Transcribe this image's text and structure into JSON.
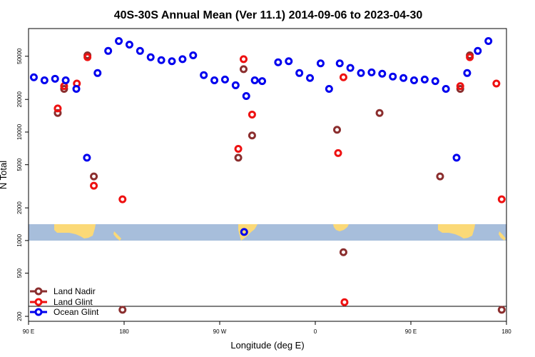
{
  "chart_data": {
    "type": "scatter",
    "title": "40S-30S Annual Mean (Ver 11.1)   2014-09-06 to 2023-04-30",
    "xlabel": "Longitude (deg E)",
    "ylabel": "N Total",
    "x_scale": "linear",
    "y_scale": "log",
    "xlim": [
      90,
      540
    ],
    "ylim": [
      180,
      90000
    ],
    "x_ticks": [
      {
        "value": 90,
        "label": "90 E"
      },
      {
        "value": 180,
        "label": "180"
      },
      {
        "value": 270,
        "label": "90 W"
      },
      {
        "value": 360,
        "label": "0"
      },
      {
        "value": 450,
        "label": "90 E"
      },
      {
        "value": 540,
        "label": "180"
      }
    ],
    "y_ticks": [
      {
        "value": 200,
        "label": "200"
      },
      {
        "value": 500,
        "label": "500"
      },
      {
        "value": 1000,
        "label": "1000"
      },
      {
        "value": 2000,
        "label": "2000"
      },
      {
        "value": 5000,
        "label": "5000"
      },
      {
        "value": 10000,
        "label": "10000"
      },
      {
        "value": 20000,
        "label": "20000"
      },
      {
        "value": 50000,
        "label": "50000"
      }
    ],
    "grid": false,
    "legend_position": "bottom-left",
    "map_strip": {
      "y_range": [
        1000,
        1400
      ],
      "ocean_color": "#a7bedb",
      "land_color": "#fbd977"
    },
    "series": [
      {
        "name": "Land Nadir",
        "color": "#8b2e2e",
        "points": [
          [
            117.5,
            15000
          ],
          [
            123.5,
            25000
          ],
          [
            145.5,
            51000
          ],
          [
            151.5,
            3900
          ],
          [
            178.5,
            230
          ],
          [
            287.5,
            5800
          ],
          [
            292.5,
            38000
          ],
          [
            300.5,
            9300
          ],
          [
            380.5,
            10500
          ],
          [
            420.5,
            15000
          ],
          [
            386.5,
            780
          ],
          [
            477.5,
            3900
          ],
          [
            496.5,
            25000
          ],
          [
            505.5,
            51000
          ],
          [
            535.5,
            230
          ]
        ]
      },
      {
        "name": "Land Glint",
        "color": "#ee1111",
        "points": [
          [
            117.5,
            16500
          ],
          [
            123.5,
            26500
          ],
          [
            135.5,
            28000
          ],
          [
            145.5,
            49000
          ],
          [
            151.5,
            3200
          ],
          [
            178.5,
            2400
          ],
          [
            287.5,
            7000
          ],
          [
            292.5,
            47000
          ],
          [
            300.5,
            14500
          ],
          [
            381.5,
            6400
          ],
          [
            386.5,
            32000
          ],
          [
            387.5,
            270
          ],
          [
            496.5,
            26500
          ],
          [
            505.5,
            49000
          ],
          [
            530.5,
            28000
          ],
          [
            535.5,
            2400
          ]
        ]
      },
      {
        "name": "Ocean Glint",
        "color": "#0000ee",
        "points": [
          [
            95,
            32000
          ],
          [
            105,
            30000
          ],
          [
            115,
            31000
          ],
          [
            125,
            30000
          ],
          [
            135,
            25000
          ],
          [
            145,
            5800
          ],
          [
            155,
            35000
          ],
          [
            165,
            56000
          ],
          [
            175,
            69000
          ],
          [
            185,
            64000
          ],
          [
            195,
            56000
          ],
          [
            205,
            49000
          ],
          [
            215,
            46000
          ],
          [
            225,
            45000
          ],
          [
            235,
            47000
          ],
          [
            245,
            51000
          ],
          [
            255,
            33500
          ],
          [
            265,
            30000
          ],
          [
            275,
            30500
          ],
          [
            285,
            27000
          ],
          [
            293,
            1200
          ],
          [
            295,
            21500
          ],
          [
            303,
            30000
          ],
          [
            310,
            29500
          ],
          [
            325,
            44000
          ],
          [
            335,
            45000
          ],
          [
            345,
            35000
          ],
          [
            355,
            31500
          ],
          [
            365,
            43000
          ],
          [
            373,
            25000
          ],
          [
            383,
            43000
          ],
          [
            393,
            39000
          ],
          [
            403,
            35000
          ],
          [
            413,
            35500
          ],
          [
            423,
            34500
          ],
          [
            433,
            32500
          ],
          [
            443,
            31500
          ],
          [
            453,
            30000
          ],
          [
            463,
            30500
          ],
          [
            473,
            29500
          ],
          [
            483,
            25000
          ],
          [
            493,
            5800
          ],
          [
            503,
            35000
          ],
          [
            513,
            56000
          ],
          [
            523,
            69000
          ]
        ]
      }
    ]
  }
}
